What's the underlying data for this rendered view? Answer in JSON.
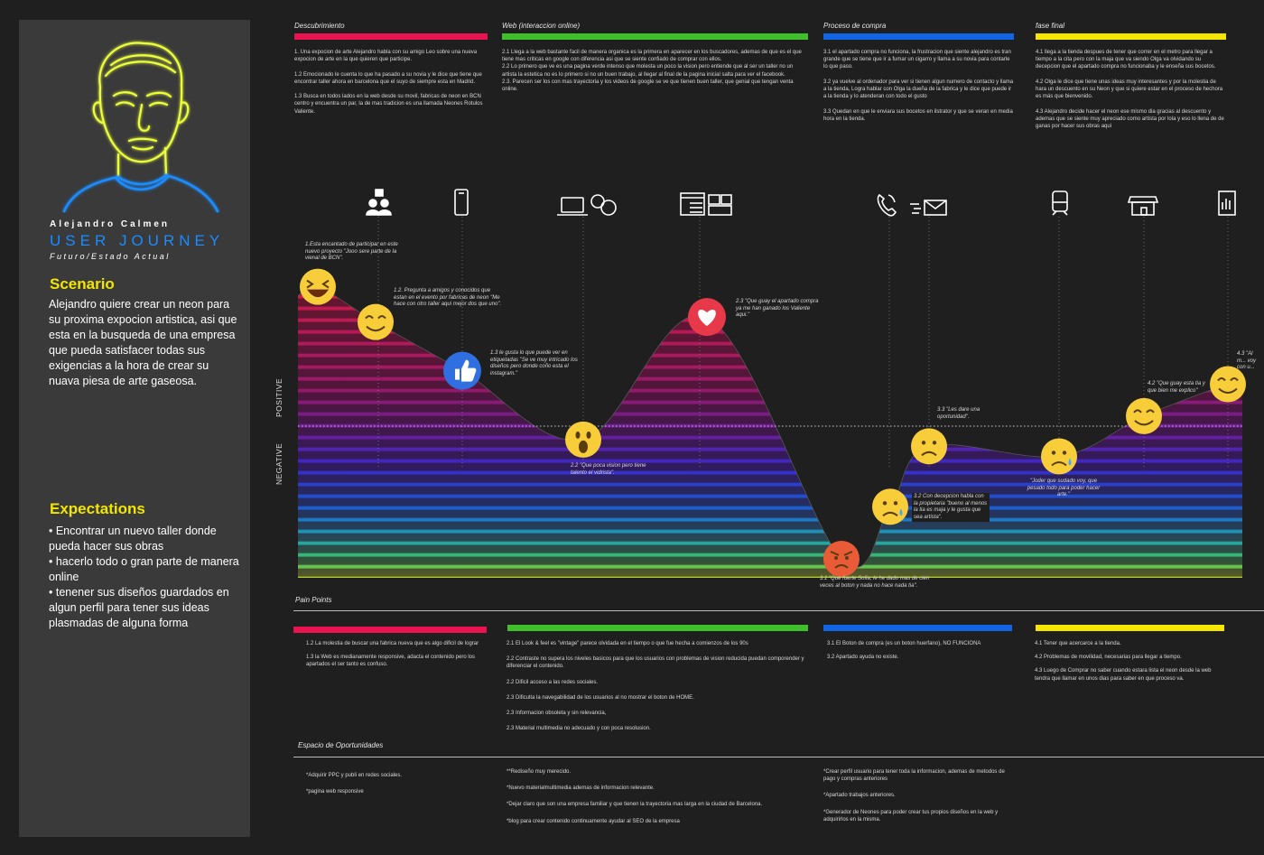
{
  "persona": {
    "name": "Alejandro Calmen",
    "title": "USER JOURNEY",
    "subtitle": "Futuro/Estado Actual"
  },
  "scenario": {
    "heading": "Scenario",
    "text": "Alejandro quiere crear un neon para su proxima expocion artistica, asi que esta en la busqueda de una empresa que pueda satisfacer todas sus exigencias a la hora de crear su nuava piesa de arte gaseosa."
  },
  "expectations": {
    "heading": "Expectations",
    "items": [
      "• Encontrar un nuevo taller donde pueda hacer sus obras",
      "• hacerlo todo o gran parte de manera online",
      "• tenener sus diseños guardados en algun perfil para tener sus ideas plasmadas de alguna forma"
    ]
  },
  "phases": [
    {
      "title": "Descubrimiento",
      "color": "#e8134f",
      "text": "1. Una expocion de arte Alejandro habla con su amigo Leo sobre una nueva expocion de arte en la que quieren que participe.\n\n1.2 Emocionado le cuenta lo que ha pasado a su novia y le dice que tiene que encontrar taller ahora en barcelona que el suyo de siempre esta en Madrid.\n\n1.3 Busca en todos lados en la web desde su movil, fabricas de neon en BCN centro y encuentra un par, la de mas tradicion es una llamada Neones Rotulos Valiente."
    },
    {
      "title": "Web (interaccion online)",
      "color": "#3fbf2a",
      "text": "2.1 Llega a la web bastante facil de manera organica es la primera en aparecer en los buscadores, ademas de que es el que tiene mas criticas en google con diferencia asi que se siente confiado de comprar con ellos.\n2.2 Lo primero que ve es una pagina verde intenso que molesta un poco la vision pero entiende que al ser un taller no un artista la estetica no es lo primero si no un buen trabajo, al llegar al final de la pagina inicial salta para ver el facebook.\n2.3. Parecen ser los con mas trayectoria y los videos de google se ve que tienen buen taller, que genial que tengan venta online."
    },
    {
      "title": "Proceso de compra",
      "color": "#1464e6",
      "text": "3.1 el apartado compra no funciona, la frustracion que siente alejandro es tran grande que se tiene que ir a fumar un cigarro y llama a su novia para contarle lo que paso.\n\n3.2 ya vuelve al ordenador para ver si tienen algun numero de contacto y llama a la tienda, Logra hablar con Olga la dueña de la fabrica y le dice que puede ir a la tienda y lo atenderan con todo el gusto\n\n3.3 Quedan en que le enviara sus bocetos en ilstrator y que se veran en media hora en la tienda."
    },
    {
      "title": "fase final",
      "color": "#f5e600",
      "text": "4.1 llega a la tienda despues de tener que correr en el metro para llegar a tiempo a la cita pero con la maja que va siendo Olga va olvidando su decepcion que el apartado compra no funcionaba y le enseña sus bocetos.\n\n4.2 Olga le dice que tiene unas ideas muy interesantes y por la molestia de hara un descuento en su Neon y que si quiere estar en el proceso de hechora es más que bienvenido.\n\n4.3 Alejandro decide hacer el neon ese mismo dia gracias al descuento y ademas que se siente muy apreciado como artista por lola y eso lo llena de de ganas por hacer sus obras aqui"
    }
  ],
  "axis": {
    "positive": "POSITIVE",
    "negative": "NEGATIVE"
  },
  "icons": [
    "people-icon",
    "smartphone-icon",
    "laptop-icon",
    "chat-bubbles-icon",
    "web-page-icon",
    "media-icon",
    "phone-call-icon",
    "email-icon",
    "metro-train-icon",
    "shop-icon",
    "receipt-icon"
  ],
  "journey_points": [
    {
      "id": "1.1",
      "emotion": "laughing",
      "level": 0.83,
      "caption": "1.Esta encantado de participar en este nuevo proyecto \"Jooo sere parte de la vienal de BCN\"."
    },
    {
      "id": "1.2",
      "emotion": "smiling",
      "level": 0.62,
      "caption": "1.2.  Pregunta a amigos y conocidos que estan en el evento por fabricas de neon \"Me hace con otro taller aqui mejor dos que uno\"."
    },
    {
      "id": "1.3",
      "emotion": "thumbs-up",
      "level": 0.33,
      "caption": "1.3 le gusta lo que puede ver en etiquetadas \"Se ve muy intricado los diseños pero donde coño esta el instagram.\""
    },
    {
      "id": "2.2",
      "emotion": "surprised",
      "level": -0.08,
      "caption": "2.2 \"Que poca vision pero tiene talento el vidrista\"."
    },
    {
      "id": "2.3",
      "emotion": "heart",
      "level": 0.65,
      "caption": "2.3 \"Que guay el apartado compra ya me han ganado los Valiente aqui.\""
    },
    {
      "id": "3.1",
      "emotion": "angry",
      "level": -0.79,
      "caption": "3.1 \"Que fuerte Sofia, le he dado mas de cien veces al boton y nada no hace nada tia\"."
    },
    {
      "id": "3.2",
      "emotion": "crying",
      "level": -0.48,
      "caption": "3.2  Con decepcion habla con la propietaria \"bueno al menos la tia es maja y le gusta que sea artista\"."
    },
    {
      "id": "3.3",
      "emotion": "frowning",
      "level": -0.12,
      "caption": "3.3 \"Les dare una oportunidad\"."
    },
    {
      "id": "4.1",
      "emotion": "sad-sweat",
      "level": -0.18,
      "caption": "\"Joder que sudado voy, que pesado todo para poder hacer arte.\""
    },
    {
      "id": "4.2",
      "emotion": "smiling",
      "level": 0.06,
      "caption": "4.2 \"Que guay esta tia y que bien me explico\""
    },
    {
      "id": "4.3",
      "emotion": "smiling",
      "level": 0.25,
      "caption": "4.3 \"Al m... voy con u..."
    }
  ],
  "pain_points": {
    "label": "Pain Points",
    "columns": [
      [
        "1.2 La molestia de buscar una fabrica nueva que es algo dificil de lograr",
        "1.3 la Web es medianamente responsive, adacta el contenido pero los apartados el ser tanto es confuso."
      ],
      [
        "2.1 El Look & feel es \"vintage\" parece olvidada en el tiempo o que fue hecha a comienzos de los 90s",
        "2.2 Contraste no supera los niveles basicos para que los usuarios con problemas de vision reducida puedan comporender y diferenciar el contenido.",
        "2.2 Dificil acceso a las redes sociales.",
        "2.3 Dificulta la navegabilidad de los usuarios al no mostrar el boton de HOME.",
        "2.3 Informacion obsoleta y sin relevancia,",
        "2.3 Material multimedia no adecuado y con poca resolusion."
      ],
      [
        "3.1 El Boton de compra (es un boton huerfano), NO FUNCIONA",
        "3.2 Apartado ayuda no existe."
      ],
      [
        "4.1 Tener que acercarce a la tienda.",
        "4.2  Problemas de movilidad, necesarias para llegar a tiempo.",
        "4.3 Luego de Comprar no saber cuando estara lista el neon desde la web tendra que llamar en unos dias para saber en que proceso va."
      ]
    ]
  },
  "opportunities": {
    "label": "Espacio de Oportunidades",
    "columns": [
      [
        "*Adquirir PPC y publi en redes sociales.",
        "*pagina web responsive"
      ],
      [
        "**Rediseño muy merecido.",
        "*Nuevo materialmultimedia ademas de informacion relevante.",
        "*Dejar claro que son una empresa familiar y que tienen la trayectoria mas larga en la ciudad de Barcelona.",
        "*blog para crear contenido continuamente ayudar al SEO de la empresa"
      ],
      [
        "*Crear perfil usuario para tener toda la informacion, ademas de metodos de pago y compras anteriores",
        "*Apartado trabajos anteriores.",
        "*Generador de Neones para poder crear tus propios diseños en la web y adquirirlos en la misma."
      ],
      []
    ]
  }
}
